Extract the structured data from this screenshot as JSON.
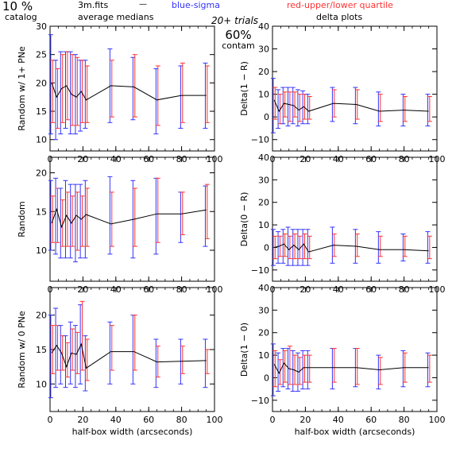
{
  "header": {
    "catalog_pct": "10 %",
    "catalog_label": "catalog",
    "filename": "3m.fits",
    "dash": "—",
    "avg_medians": "average medians",
    "blue_sigma": "blue-sigma",
    "red_quartile": "red-upper/lower quartile",
    "trials": "20+ trials",
    "contam_pct": "60%",
    "contam_label": "contam",
    "delta_plots": "delta plots"
  },
  "colors": {
    "median_line": "#000000",
    "sigma": "#3333ff",
    "quartile": "#ff3333",
    "frame": "#000000"
  },
  "chart_data": [
    {
      "type": "line",
      "ylabel": "Random w/ 1+ PNe",
      "xlabel": "",
      "xlim": [
        0,
        100
      ],
      "ylim": [
        8,
        30
      ],
      "xticks": [
        "0",
        "20",
        "40",
        "60",
        "80",
        "100"
      ],
      "yticks": [
        "10",
        "15",
        "20",
        "25",
        "30"
      ],
      "x": [
        1,
        4,
        7,
        10,
        13,
        16,
        19,
        22,
        37,
        51,
        65,
        80,
        95
      ],
      "series": [
        {
          "values": [
            20,
            17.5,
            19,
            19.5,
            18,
            17.5,
            18.5,
            17,
            19.5,
            19.3,
            17,
            17.8,
            17.8
          ]
        }
      ],
      "sigma_low": [
        11,
        10,
        11,
        12,
        11,
        11,
        11.5,
        12,
        13,
        13.5,
        11,
        12,
        12
      ],
      "sigma_high": [
        28.5,
        24,
        25.5,
        25.5,
        25.5,
        25,
        24,
        24,
        26,
        24.5,
        22.5,
        23,
        23.5
      ],
      "quartile_low": [
        13,
        12,
        13,
        13.5,
        12.5,
        12.5,
        13,
        13,
        14,
        14,
        12.5,
        13,
        13
      ],
      "quartile_high": [
        24,
        22.5,
        25,
        25.5,
        25,
        24.5,
        24,
        23,
        24,
        25,
        23,
        23.5,
        23
      ]
    },
    {
      "type": "line",
      "ylabel": "Delta(1 − R)",
      "xlabel": "",
      "xlim": [
        0,
        100
      ],
      "ylim": [
        -15,
        40
      ],
      "xticks": [
        "0",
        "20",
        "40",
        "60",
        "80",
        "100"
      ],
      "yticks": [
        "−10",
        "0",
        "10",
        "20",
        "30",
        "40"
      ],
      "x": [
        1,
        4,
        7,
        10,
        13,
        16,
        19,
        22,
        37,
        51,
        65,
        80,
        95
      ],
      "series": [
        {
          "values": [
            7.5,
            2.5,
            6,
            5.5,
            5,
            3,
            4.5,
            2.5,
            6,
            5.5,
            2.5,
            3,
            2.5
          ]
        }
      ],
      "sigma_low": [
        -7,
        -5,
        -3,
        -4,
        -3,
        -4,
        -3,
        -3,
        -2,
        -3,
        -4,
        -4,
        -4
      ],
      "sigma_high": [
        17,
        12,
        13,
        13,
        13,
        12,
        11.5,
        10,
        13,
        13,
        11,
        10,
        10
      ],
      "quartile_low": [
        -1,
        -3,
        0,
        -2,
        0,
        -2,
        -1,
        -1,
        0,
        -1,
        -2,
        -2,
        -2
      ],
      "quartile_high": [
        13,
        10,
        11,
        11,
        11,
        10,
        10,
        9,
        12,
        12,
        10,
        9,
        9
      ]
    },
    {
      "type": "line",
      "ylabel": "Random",
      "xlabel": "",
      "xlim": [
        0,
        100
      ],
      "ylim": [
        6,
        22
      ],
      "xticks": [
        "0",
        "20",
        "40",
        "60",
        "80",
        "100"
      ],
      "yticks": [
        "10",
        "15",
        "20"
      ],
      "x": [
        1,
        4,
        7,
        10,
        13,
        16,
        19,
        22,
        37,
        51,
        65,
        80,
        95
      ],
      "series": [
        {
          "values": [
            13.5,
            15.3,
            13,
            14.5,
            13.5,
            14.5,
            14,
            14.6,
            13.4,
            14,
            14.7,
            14.7,
            15.2
          ]
        }
      ],
      "sigma_low": [
        10,
        9.5,
        9,
        9,
        9,
        8.5,
        9,
        9,
        9.5,
        9,
        9.5,
        11,
        10.5
      ],
      "sigma_high": [
        19,
        19.3,
        18,
        19,
        18.5,
        18.5,
        18.5,
        19,
        19.5,
        19,
        19.3,
        17.5,
        18.3
      ],
      "quartile_low": [
        11,
        11,
        10.5,
        10.5,
        10.5,
        10,
        10.5,
        10.5,
        10.5,
        10.5,
        11,
        12,
        11.5
      ],
      "quartile_high": [
        17,
        18,
        16.5,
        17.5,
        17,
        17.5,
        17,
        18,
        17.5,
        18,
        19.3,
        17.5,
        18.5
      ]
    },
    {
      "type": "line",
      "ylabel": "Delta(0 − R)",
      "xlabel": "",
      "xlim": [
        0,
        100
      ],
      "ylim": [
        -15,
        40
      ],
      "xticks": [
        "0",
        "20",
        "40",
        "60",
        "80",
        "100"
      ],
      "yticks": [
        "−10",
        "0",
        "10",
        "20",
        "30",
        "40"
      ],
      "x": [
        1,
        4,
        7,
        10,
        13,
        16,
        19,
        22,
        37,
        51,
        65,
        80,
        95
      ],
      "series": [
        {
          "values": [
            0,
            0.5,
            1.5,
            -1,
            1,
            -1,
            1.5,
            -2,
            1,
            0.5,
            -1,
            -1,
            -1.5
          ]
        }
      ],
      "sigma_low": [
        -8,
        -7,
        -7,
        -8,
        -8,
        -8,
        -8,
        -8,
        -7,
        -7,
        -7,
        -6,
        -7
      ],
      "sigma_high": [
        8,
        7,
        8,
        9,
        8,
        8,
        8,
        8,
        9,
        8,
        7,
        6,
        7
      ],
      "quartile_low": [
        -5,
        -4,
        -4,
        -5,
        -5,
        -5,
        -5,
        -5,
        -4,
        -4,
        -4,
        -4,
        -5
      ],
      "quartile_high": [
        5,
        5,
        6,
        5,
        6,
        5,
        6,
        5,
        6,
        6,
        5,
        5,
        5
      ]
    },
    {
      "type": "line",
      "ylabel": "Random w/ 0 PNe",
      "xlabel": "half-box width (arcseconds)",
      "xlim": [
        0,
        100
      ],
      "ylim": [
        6,
        24
      ],
      "xticks": [
        "0",
        "20",
        "40",
        "60",
        "80",
        "100"
      ],
      "yticks": [
        "10",
        "15",
        "20"
      ],
      "x": [
        1,
        4,
        7,
        10,
        13,
        16,
        19,
        22,
        37,
        51,
        65,
        80,
        95
      ],
      "series": [
        {
          "values": [
            14.5,
            15.6,
            14.5,
            12.5,
            14.5,
            14.3,
            15.8,
            12.3,
            14.7,
            14.7,
            13.2,
            13.3,
            13.4
          ]
        }
      ],
      "sigma_low": [
        8,
        9.5,
        10,
        9.5,
        10,
        9.5,
        10,
        9,
        10,
        10,
        9.5,
        10,
        9.5
      ],
      "sigma_high": [
        20,
        21,
        18.5,
        17,
        19,
        18.5,
        21.5,
        17,
        19,
        20,
        16.5,
        16.5,
        16.5
      ],
      "quartile_low": [
        11.5,
        12,
        12,
        11,
        12,
        11.5,
        12,
        10.5,
        12,
        12,
        11,
        11.5,
        11.5
      ],
      "quartile_high": [
        18.5,
        18.5,
        17,
        16,
        18,
        17.5,
        22,
        16.5,
        18.5,
        20,
        15.5,
        15.5,
        15
      ]
    },
    {
      "type": "line",
      "ylabel": "Delta(1 − 0)",
      "xlabel": "half-box width (arcseconds)",
      "xlim": [
        0,
        100
      ],
      "ylim": [
        -15,
        40
      ],
      "xticks": [
        "0",
        "20",
        "40",
        "60",
        "80",
        "100"
      ],
      "yticks": [
        "−10",
        "0",
        "10",
        "20",
        "30",
        "40"
      ],
      "x": [
        1,
        4,
        7,
        10,
        13,
        16,
        19,
        22,
        37,
        51,
        65,
        80,
        95
      ],
      "series": [
        {
          "values": [
            6,
            2,
            6.5,
            4,
            3.5,
            2.5,
            4.5,
            4.5,
            4.5,
            4.5,
            3.5,
            4.5,
            4.5
          ]
        }
      ],
      "sigma_low": [
        -8,
        -6,
        -4,
        -5,
        -6,
        -6,
        -5,
        -5,
        -5,
        -4,
        -5,
        -4,
        -4
      ],
      "sigma_high": [
        15,
        11,
        13,
        13,
        12,
        11,
        12,
        12,
        13,
        13,
        10,
        12,
        11
      ],
      "quartile_low": [
        -4,
        -3,
        -2,
        -3,
        -3,
        -3,
        -2,
        -2,
        -2,
        -3,
        -3,
        -2,
        -2
      ],
      "quartile_high": [
        12,
        8,
        12,
        14,
        10,
        9,
        10,
        10,
        13,
        13,
        9,
        11,
        10
      ]
    }
  ]
}
